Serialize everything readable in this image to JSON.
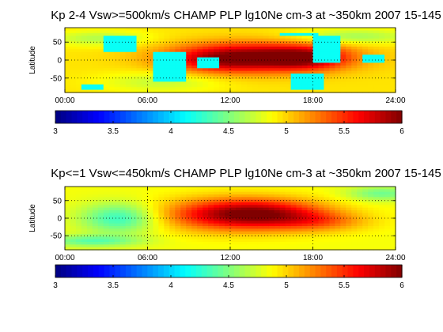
{
  "chart_data": [
    {
      "type": "heatmap",
      "title": "Kp 2-4 Vsw>=500km/s CHAMP PLP lg10Ne cm-3 at ~350km 2007 15-145",
      "xlabel": "",
      "ylabel": "Latitude",
      "x_tick_labels": [
        "00:00",
        "06:00",
        "12:00",
        "18:00",
        "24:00"
      ],
      "y_tick_labels": [
        "50",
        "0",
        "-50"
      ],
      "x_ticks_hours": [
        0,
        6,
        12,
        18,
        24
      ],
      "y_ticks_deg": [
        50,
        0,
        -50
      ],
      "xlim_hours": [
        0,
        24
      ],
      "ylim_deg": [
        -90,
        90
      ],
      "grid": true,
      "colorbar": {
        "orientation": "horizontal",
        "range": [
          3,
          6
        ],
        "ticks": [
          3,
          3.5,
          4,
          4.5,
          5,
          5.5,
          6
        ],
        "tick_labels": [
          "3",
          "3.5",
          "4",
          "4.5",
          "5",
          "5.5",
          "6"
        ]
      },
      "background_level": 4.95,
      "features": [
        {
          "hour": 14.0,
          "lat": 8,
          "sigma_hour": 4.2,
          "sigma_lat": 28,
          "amp": 0.95
        },
        {
          "hour": 17.5,
          "lat": 5,
          "sigma_hour": 2.0,
          "sigma_lat": 22,
          "amp": 0.55
        },
        {
          "hour": 11.0,
          "lat": -2,
          "sigma_hour": 2.5,
          "sigma_lat": 25,
          "amp": 0.35
        },
        {
          "hour": 2.5,
          "lat": 60,
          "sigma_hour": 2.5,
          "sigma_lat": 15,
          "amp": -0.3
        },
        {
          "hour": 21.0,
          "lat": 65,
          "sigma_hour": 3.0,
          "sigma_lat": 15,
          "amp": -0.35
        },
        {
          "hour": 7.0,
          "lat": -60,
          "sigma_hour": 3.0,
          "sigma_lat": 20,
          "amp": -0.25
        }
      ],
      "gaps": [
        {
          "hour_range": [
            3.0,
            5.0
          ],
          "lat_range": [
            20,
            65
          ],
          "fill_level": 4.15
        },
        {
          "hour_range": [
            6.4,
            8.6
          ],
          "lat_range": [
            -60,
            20
          ],
          "fill_level": 4.15
        },
        {
          "hour_range": [
            9.5,
            11.2
          ],
          "lat_range": [
            -20,
            10
          ],
          "fill_level": 4.15
        },
        {
          "hour_range": [
            16.6,
            18.6
          ],
          "lat_range": [
            -80,
            -35
          ],
          "fill_level": 4.15
        },
        {
          "hour_range": [
            18.0,
            19.8
          ],
          "lat_range": [
            -10,
            65
          ],
          "fill_level": 4.15
        },
        {
          "hour_range": [
            21.5,
            23.2
          ],
          "lat_range": [
            -10,
            15
          ],
          "fill_level": 4.15
        },
        {
          "hour_range": [
            1.2,
            2.8
          ],
          "lat_range": [
            -82,
            -70
          ],
          "fill_level": 4.15
        },
        {
          "hour_range": [
            15.5,
            18.5
          ],
          "lat_range": [
            65,
            75
          ],
          "fill_level": 4.15
        }
      ]
    },
    {
      "type": "heatmap",
      "title": "Kp<=1 Vsw<=450km/s CHAMP PLP lg10Ne cm-3 at ~350km 2007 15-145",
      "xlabel": "",
      "ylabel": "Latitude",
      "x_tick_labels": [
        "00:00",
        "06:00",
        "12:00",
        "18:00",
        "24:00"
      ],
      "y_tick_labels": [
        "50",
        "0",
        "-50"
      ],
      "x_ticks_hours": [
        0,
        6,
        12,
        18,
        24
      ],
      "y_ticks_deg": [
        50,
        0,
        -50
      ],
      "xlim_hours": [
        0,
        24
      ],
      "ylim_deg": [
        -90,
        90
      ],
      "grid": true,
      "colorbar": {
        "orientation": "horizontal",
        "range": [
          3,
          6
        ],
        "ticks": [
          3,
          3.5,
          4,
          4.5,
          5,
          5.5,
          6
        ],
        "tick_labels": [
          "3",
          "3.5",
          "4",
          "4.5",
          "5",
          "5.5",
          "6"
        ]
      },
      "background_level": 4.85,
      "features": [
        {
          "hour": 12.5,
          "lat": 10,
          "sigma_hour": 3.8,
          "sigma_lat": 32,
          "amp": 0.95
        },
        {
          "hour": 15.0,
          "lat": 15,
          "sigma_hour": 3.0,
          "sigma_lat": 25,
          "amp": 0.35
        },
        {
          "hour": 18.5,
          "lat": -10,
          "sigma_hour": 2.5,
          "sigma_lat": 20,
          "amp": 0.35
        },
        {
          "hour": 4.0,
          "lat": 0,
          "sigma_hour": 2.0,
          "sigma_lat": 30,
          "amp": -0.6
        },
        {
          "hour": 2.0,
          "lat": -65,
          "sigma_hour": 2.5,
          "sigma_lat": 12,
          "amp": -0.45
        },
        {
          "hour": 23.0,
          "lat": 70,
          "sigma_hour": 1.8,
          "sigma_lat": 15,
          "amp": -0.4
        }
      ],
      "gaps": []
    }
  ]
}
